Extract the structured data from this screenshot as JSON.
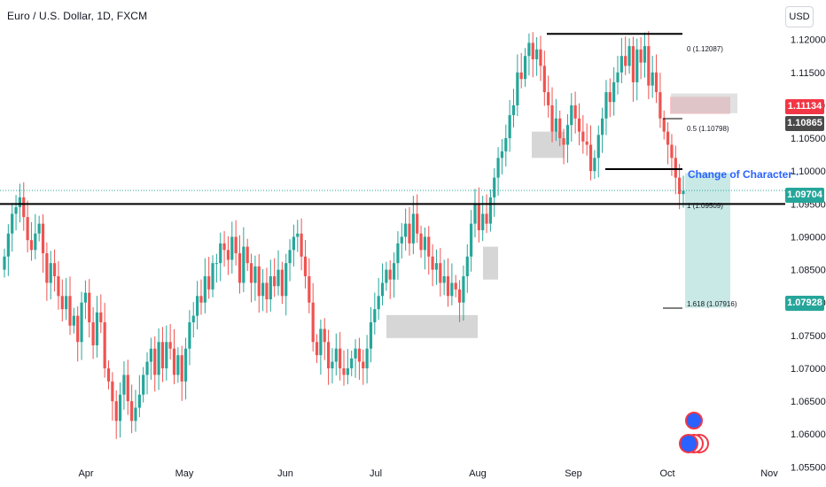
{
  "header": {
    "symbol_title": "Euro / U.S. Dollar, 1D, FXCM",
    "currency_button": "USD"
  },
  "price_labels": {
    "sell_top": "1.11134",
    "sell_bottom": "1.10865",
    "current": "1.09704",
    "target": "1.07928"
  },
  "annotations": {
    "change_of_character": "Change of Character",
    "fib_0": "0 (1.12087)",
    "fib_05": "0.5 (1.10798)",
    "fib_1": "1 (1.09509)",
    "fib_1618": "1.618 (1.07916)"
  },
  "colors": {
    "up": "#26a69a",
    "down": "#ef5350",
    "accent_blue": "#2962ff",
    "target_green": "#26a69a",
    "sell_red": "#f23645",
    "dark_label": "#4a4a4a"
  },
  "chart_data": {
    "type": "candlestick",
    "ylim": [
      1.0533,
      1.1244
    ],
    "yticks": [
      "1.12000",
      "1.11500",
      "1.11000",
      "1.10500",
      "1.10000",
      "1.09500",
      "1.09000",
      "1.08500",
      "1.08000",
      "1.07500",
      "1.07000",
      "1.06500",
      "1.06000",
      "1.05500"
    ],
    "xticks": [
      "Apr",
      "May",
      "Jun",
      "Jul",
      "Aug",
      "Sep",
      "Oct",
      "Nov"
    ],
    "levels": {
      "horizontal_support": 1.095,
      "choch_level": 1.1003,
      "top_level": 1.12087,
      "current_price": 1.09704
    },
    "close_series": [
      1.087,
      1.0905,
      1.0935,
      1.0945,
      1.096,
      1.093,
      1.0895,
      1.088,
      1.0905,
      1.092,
      1.0875,
      1.083,
      1.086,
      1.084,
      1.081,
      1.079,
      1.081,
      1.0765,
      1.078,
      1.074,
      1.08,
      1.0815,
      1.077,
      1.0735,
      1.0785,
      1.077,
      1.07,
      1.068,
      1.065,
      1.062,
      1.066,
      1.069,
      1.065,
      1.062,
      1.064,
      1.066,
      1.069,
      1.071,
      1.073,
      1.069,
      1.074,
      1.07,
      1.074,
      1.073,
      1.069,
      1.072,
      1.068,
      1.073,
      1.077,
      1.078,
      1.081,
      1.08,
      1.084,
      1.082,
      1.086,
      1.086,
      1.089,
      1.088,
      1.0865,
      1.09,
      1.0875,
      1.083,
      1.0885,
      1.086,
      1.083,
      1.0855,
      1.081,
      1.083,
      1.0805,
      1.084,
      1.0825,
      1.085,
      1.081,
      1.086,
      1.088,
      1.09,
      1.0905,
      1.087,
      1.084,
      1.08,
      1.074,
      1.072,
      1.076,
      1.074,
      1.07,
      1.071,
      1.073,
      1.07,
      1.069,
      1.07,
      1.0715,
      1.073,
      1.071,
      1.07,
      1.073,
      1.077,
      1.079,
      1.081,
      1.083,
      1.085,
      1.0835,
      1.086,
      1.089,
      1.09,
      1.092,
      1.089,
      1.0935,
      1.0905,
      1.088,
      1.09,
      1.087,
      1.085,
      1.086,
      1.083,
      1.084,
      1.081,
      1.083,
      1.082,
      1.08,
      1.084,
      1.087,
      1.092,
      1.095,
      1.091,
      1.0935,
      1.092,
      1.096,
      1.099,
      1.102,
      1.103,
      1.105,
      1.1085,
      1.11,
      1.115,
      1.114,
      1.1175,
      1.1195,
      1.117,
      1.1185,
      1.116,
      1.112,
      1.11,
      1.106,
      1.108,
      1.105,
      1.104,
      1.107,
      1.11,
      1.108,
      1.106,
      1.1045,
      1.104,
      1.1,
      1.102,
      1.1055,
      1.108,
      1.112,
      1.1105,
      1.1135,
      1.115,
      1.1175,
      1.116,
      1.119,
      1.1135,
      1.1185,
      1.1165,
      1.119,
      1.113,
      1.115,
      1.112,
      1.108,
      1.106,
      1.104,
      1.102,
      1.099,
      1.0965,
      1.097
    ]
  }
}
